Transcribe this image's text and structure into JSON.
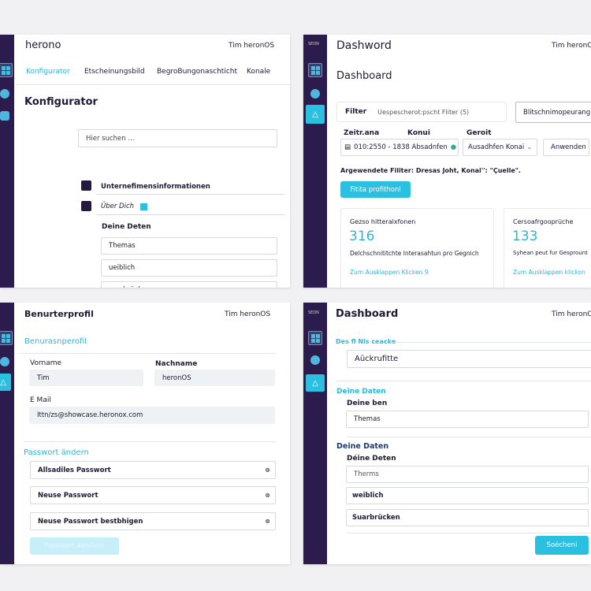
{
  "sidebar": {
    "logo_text": "SEDN"
  },
  "colors": {
    "accent": "#2bbfe0",
    "sidebar": "#2c1b4d"
  },
  "configurator": {
    "logo": "herono",
    "user": "Tim heronOS",
    "tabs": [
      "Konfigurator",
      "Etscheinungsbild",
      "BegroBungonaschticht",
      "Konale"
    ],
    "title": "Konfigurator",
    "search_placeholder": "Hier suchen ...",
    "sections": [
      "Unternefimensinformationen",
      "Über Dich"
    ],
    "group_label": "Deine Deten",
    "fields": [
      "Themas",
      "ueiblich",
      "suarbrücken"
    ]
  },
  "dashboard1": {
    "app_title": "Dashword",
    "user": "Tim heronO",
    "title": "Dashboard",
    "filter_label": "Filter",
    "filter_saved": "Uespescherot:pscht Fliter (5)",
    "quick_select": "Blitschnimopeurang",
    "labels": [
      "Zeitr.ana",
      "Konui",
      "Geroit"
    ],
    "date_value": "010:2550 - 1838 Absadnfen",
    "select_value": "Ausadhfen Konai",
    "apply": "Anwenden",
    "applied": "Argewendete Filiter: Dresas Joht, Konai'':  \"Çuelle\".",
    "cta": "Fitita profithonl",
    "cards": [
      {
        "title": "Gezso hitteralxfonen",
        "value": "316",
        "desc": "Delchschnititchte Interasahtun pro Gegnich",
        "link": "Zum Ausklappen Klicken 9"
      },
      {
        "title": "Cersoafrgooprüche",
        "value": "133",
        "desc": "Syhean peut fur Gesprount",
        "link": "Zum Ausklappen klickon"
      }
    ]
  },
  "profile": {
    "title": "Benurterprofil",
    "user": "Tim heronOS",
    "section": "Benurasnperofil",
    "first_label": "Vorname",
    "first_value": "Tim",
    "last_label": "Nachname",
    "last_value": "heronOS",
    "email_label": "E Mail",
    "email_value": "Ittn/zs@showcase.heronox.com",
    "pw_section": "Passwort ändern",
    "pw_fields": [
      "Allsadiles Passwort",
      "Neuse Passwort",
      "Neuse Passwort bestbhigen"
    ],
    "save": "Passwort aendern"
  },
  "dashboard2": {
    "title": "Dashboard",
    "user": "Tim heronO",
    "section1": "Des fl Nis ceacke",
    "input1": "Aückrufitte",
    "section2": "Deine Daten",
    "label2": "Deine ben",
    "input2": "Themas",
    "section3": "Deine Daten",
    "label3": "Déine Deten",
    "fields": [
      "Therms",
      "weiblich",
      "Suarbrücken"
    ],
    "save": "Soécheni"
  }
}
